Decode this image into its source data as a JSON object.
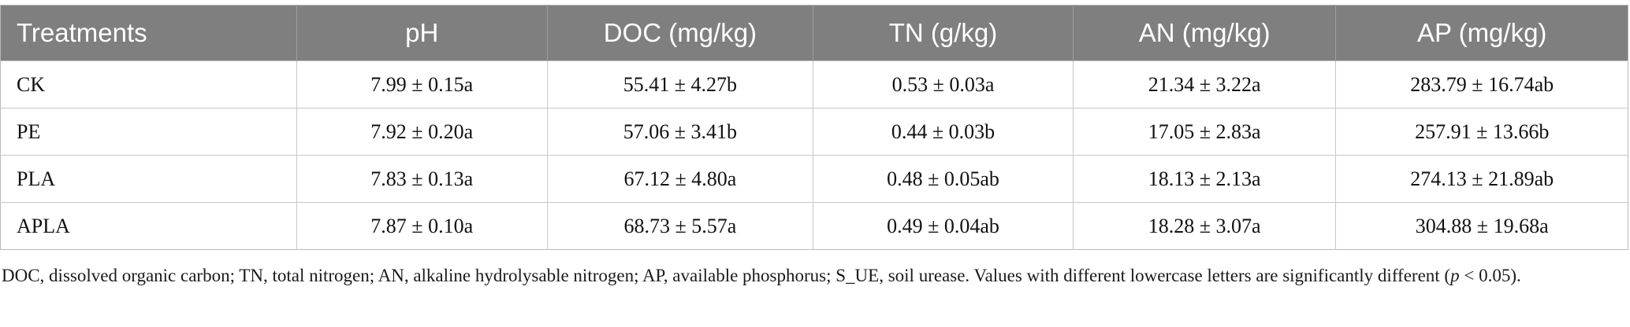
{
  "table": {
    "headers": [
      "Treatments",
      "pH",
      "DOC (mg/kg)",
      "TN (g/kg)",
      "AN (mg/kg)",
      "AP (mg/kg)"
    ],
    "rows": [
      [
        "CK",
        "7.99 ± 0.15a",
        "55.41 ± 4.27b",
        "0.53 ± 0.03a",
        "21.34 ± 3.22a",
        "283.79 ± 16.74ab"
      ],
      [
        "PE",
        "7.92 ± 0.20a",
        "57.06 ± 3.41b",
        "0.44 ± 0.03b",
        "17.05 ± 2.83a",
        "257.91 ± 13.66b"
      ],
      [
        "PLA",
        "7.83 ± 0.13a",
        "67.12 ± 4.80a",
        "0.48 ± 0.05ab",
        "18.13 ± 2.13a",
        "274.13 ± 21.89ab"
      ],
      [
        "APLA",
        "7.87 ± 0.10a",
        "68.73 ± 5.57a",
        "0.49 ± 0.04ab",
        "18.28 ± 3.07a",
        "304.88 ± 19.68a"
      ]
    ],
    "header_bg": "#7f7f7f"
  },
  "footnote": {
    "main": "DOC, dissolved organic carbon; TN, total nitrogen; AN, alkaline hydrolysable nitrogen; AP, available phosphorus; S_UE, soil urease. Values with different lowercase letters are significantly different (",
    "p": "p",
    "tail": " < 0.05)."
  }
}
